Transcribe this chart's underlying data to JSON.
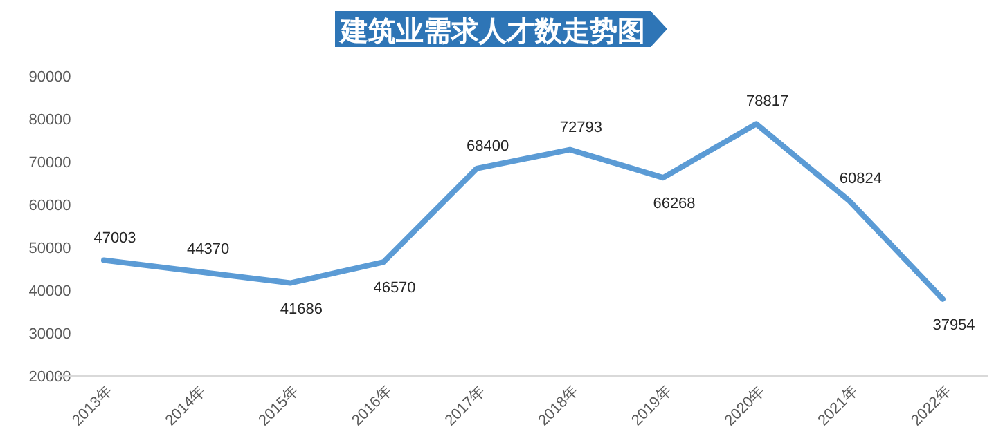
{
  "chart_data": {
    "type": "line",
    "title": "建筑业需求人才数走势图",
    "categories": [
      "2013年",
      "2014年",
      "2015年",
      "2016年",
      "2017年",
      "2018年",
      "2019年",
      "2020年",
      "2021年",
      "2022年"
    ],
    "values": [
      47003,
      44370,
      41686,
      46570,
      68400,
      72793,
      66268,
      78817,
      60824,
      37954
    ],
    "color": "#5b9bd5",
    "ylim": [
      20000,
      90000
    ],
    "yticks": [
      20000,
      30000,
      40000,
      50000,
      60000,
      70000,
      80000,
      90000
    ],
    "data_labels": true,
    "grid": false,
    "marker": "none",
    "line_style": "solid"
  }
}
